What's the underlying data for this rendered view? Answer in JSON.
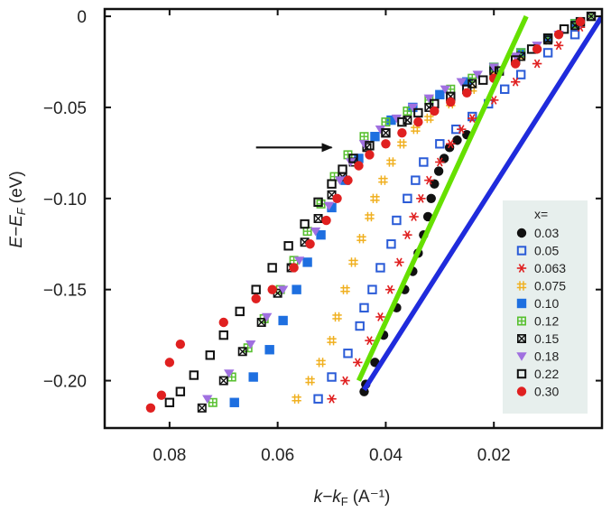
{
  "chart_data": {
    "type": "scatter",
    "xlabel": "k−kF (A⁻¹)",
    "xlabel_parts": {
      "main": "k−k",
      "sub": "F",
      "unit": "(A⁻¹)"
    },
    "ylabel": "E−EF (eV)",
    "ylabel_parts": {
      "main": "E−E",
      "sub": "F",
      "unit": "(eV)"
    },
    "xlim": [
      0.092,
      0.0
    ],
    "ylim": [
      -0.226,
      0.004
    ],
    "x_ticks": [
      0.08,
      0.06,
      0.04,
      0.02
    ],
    "x_tick_labels": [
      "0.08",
      "0.06",
      "0.04",
      "0.02"
    ],
    "y_ticks": [
      0,
      -0.05,
      -0.1,
      -0.15,
      -0.2
    ],
    "y_tick_labels": [
      "0",
      "−0.05",
      "−0.10",
      "−0.15",
      "−0.20"
    ],
    "legend_title": "x=",
    "legend_position": "right",
    "arrow": {
      "from": [
        0.064,
        -0.072
      ],
      "to": [
        0.05,
        -0.072
      ],
      "color": "#111111"
    },
    "lines": [
      {
        "name": "green-line",
        "color": "#66e000",
        "x": [
          0.045,
          0.014
        ],
        "y": [
          -0.2,
          0.0
        ]
      },
      {
        "name": "blue-line",
        "color": "#1f2bdc",
        "x": [
          0.044,
          0.0
        ],
        "y": [
          -0.205,
          0.0
        ]
      }
    ],
    "series": [
      {
        "name": "0.03",
        "marker": "circle",
        "color": "#111111",
        "x": [
          0.044,
          0.0437,
          0.042,
          0.0404,
          0.038,
          0.0365,
          0.035,
          0.034,
          0.033,
          0.0322,
          0.0316,
          0.031,
          0.0302,
          0.0292,
          0.0282,
          0.0268,
          0.025
        ],
        "y": [
          -0.206,
          -0.202,
          -0.19,
          -0.175,
          -0.16,
          -0.15,
          -0.14,
          -0.13,
          -0.12,
          -0.11,
          -0.1,
          -0.092,
          -0.085,
          -0.078,
          -0.072,
          -0.068,
          -0.065
        ]
      },
      {
        "name": "0.05",
        "marker": "square-open",
        "color": "#2a5bd7",
        "x": [
          0.0525,
          0.05,
          0.047,
          0.0448,
          0.044,
          0.0425,
          0.041,
          0.039,
          0.038,
          0.036,
          0.0345,
          0.033,
          0.03,
          0.027,
          0.024,
          0.021,
          0.018,
          0.015,
          0.01,
          0.005
        ],
        "y": [
          -0.21,
          -0.198,
          -0.185,
          -0.17,
          -0.16,
          -0.15,
          -0.138,
          -0.125,
          -0.112,
          -0.1,
          -0.09,
          -0.08,
          -0.07,
          -0.062,
          -0.055,
          -0.048,
          -0.04,
          -0.032,
          -0.02,
          -0.01
        ]
      },
      {
        "name": "0.063",
        "marker": "asterisk",
        "color": "#e02020",
        "x": [
          0.05,
          0.0475,
          0.0452,
          0.043,
          0.041,
          0.0392,
          0.0375,
          0.036,
          0.0348,
          0.0335,
          0.032,
          0.03,
          0.028,
          0.026,
          0.024,
          0.02,
          0.016,
          0.012,
          0.008,
          0.004
        ],
        "y": [
          -0.21,
          -0.2,
          -0.19,
          -0.178,
          -0.165,
          -0.15,
          -0.135,
          -0.12,
          -0.11,
          -0.1,
          -0.09,
          -0.08,
          -0.07,
          -0.062,
          -0.056,
          -0.046,
          -0.036,
          -0.026,
          -0.016,
          -0.006
        ]
      },
      {
        "name": "0.075",
        "marker": "hash",
        "color": "#f0b020",
        "x": [
          0.0565,
          0.054,
          0.052,
          0.05,
          0.049,
          0.0475,
          0.046,
          0.0445,
          0.043,
          0.042,
          0.0405,
          0.039,
          0.037,
          0.0345,
          0.032,
          0.028,
          0.024,
          0.02,
          0.015,
          0.01,
          0.005
        ],
        "y": [
          -0.21,
          -0.2,
          -0.19,
          -0.178,
          -0.165,
          -0.15,
          -0.135,
          -0.122,
          -0.11,
          -0.1,
          -0.09,
          -0.08,
          -0.07,
          -0.062,
          -0.056,
          -0.048,
          -0.04,
          -0.032,
          -0.022,
          -0.013,
          -0.005
        ]
      },
      {
        "name": "0.10",
        "marker": "square",
        "color": "#1e6fe0",
        "x": [
          0.068,
          0.0645,
          0.0615,
          0.059,
          0.0565,
          0.0545,
          0.052,
          0.05,
          0.0475,
          0.045,
          0.042,
          0.039,
          0.035,
          0.03,
          0.025,
          0.02,
          0.015,
          0.01,
          0.005
        ],
        "y": [
          -0.212,
          -0.198,
          -0.183,
          -0.167,
          -0.15,
          -0.135,
          -0.12,
          -0.105,
          -0.09,
          -0.078,
          -0.066,
          -0.057,
          -0.05,
          -0.043,
          -0.036,
          -0.028,
          -0.02,
          -0.012,
          -0.004
        ]
      },
      {
        "name": "0.12",
        "marker": "square-grid",
        "color": "#58c030",
        "x": [
          0.072,
          0.0685,
          0.0655,
          0.0625,
          0.0595,
          0.057,
          0.0545,
          0.052,
          0.0495,
          0.047,
          0.044,
          0.04,
          0.036,
          0.032,
          0.028,
          0.024,
          0.02,
          0.015,
          0.01,
          0.005,
          0.002
        ],
        "y": [
          -0.212,
          -0.198,
          -0.182,
          -0.166,
          -0.15,
          -0.134,
          -0.118,
          -0.103,
          -0.088,
          -0.076,
          -0.066,
          -0.058,
          -0.052,
          -0.046,
          -0.04,
          -0.034,
          -0.028,
          -0.02,
          -0.012,
          -0.004,
          0.0
        ]
      },
      {
        "name": "0.15",
        "marker": "square-x",
        "color": "#111111",
        "x": [
          0.074,
          0.07,
          0.0665,
          0.063,
          0.06,
          0.0575,
          0.055,
          0.0525,
          0.05,
          0.048,
          0.046,
          0.0435,
          0.04,
          0.036,
          0.032,
          0.028,
          0.024,
          0.02,
          0.015,
          0.01,
          0.005,
          0.002
        ],
        "y": [
          -0.215,
          -0.2,
          -0.184,
          -0.168,
          -0.152,
          -0.138,
          -0.124,
          -0.111,
          -0.098,
          -0.088,
          -0.08,
          -0.072,
          -0.064,
          -0.057,
          -0.05,
          -0.044,
          -0.037,
          -0.03,
          -0.022,
          -0.013,
          -0.005,
          0.0
        ]
      },
      {
        "name": "0.18",
        "marker": "triangle-down",
        "color": "#a070e0",
        "x": [
          0.073,
          0.069,
          0.065,
          0.062,
          0.059,
          0.056,
          0.053,
          0.0505,
          0.0485,
          0.0465,
          0.044,
          0.041,
          0.038,
          0.035,
          0.032,
          0.029,
          0.026,
          0.023,
          0.02,
          0.016,
          0.012,
          0.008,
          0.004
        ],
        "y": [
          -0.21,
          -0.196,
          -0.18,
          -0.165,
          -0.15,
          -0.134,
          -0.118,
          -0.104,
          -0.09,
          -0.08,
          -0.07,
          -0.062,
          -0.056,
          -0.05,
          -0.045,
          -0.04,
          -0.036,
          -0.032,
          -0.028,
          -0.022,
          -0.016,
          -0.01,
          -0.004
        ]
      },
      {
        "name": "0.22",
        "marker": "square-open",
        "color": "#111111",
        "x": [
          0.08,
          0.078,
          0.0755,
          0.0725,
          0.07,
          0.067,
          0.064,
          0.061,
          0.058,
          0.055,
          0.0525,
          0.05,
          0.048,
          0.046,
          0.043,
          0.04,
          0.037,
          0.034,
          0.031,
          0.028,
          0.025,
          0.022,
          0.019,
          0.016,
          0.013,
          0.01,
          0.007,
          0.004,
          0.002
        ],
        "y": [
          -0.212,
          -0.206,
          -0.197,
          -0.186,
          -0.175,
          -0.162,
          -0.15,
          -0.138,
          -0.126,
          -0.114,
          -0.102,
          -0.092,
          -0.084,
          -0.078,
          -0.071,
          -0.064,
          -0.058,
          -0.053,
          -0.048,
          -0.044,
          -0.04,
          -0.035,
          -0.03,
          -0.024,
          -0.018,
          -0.012,
          -0.007,
          -0.003,
          0.0
        ]
      },
      {
        "name": "0.30",
        "marker": "circle",
        "color": "#e02020",
        "x": [
          0.0835,
          0.0815,
          0.08,
          0.078,
          0.07,
          0.064,
          0.061,
          0.057,
          0.054,
          0.051,
          0.049,
          0.047,
          0.045,
          0.043,
          0.04,
          0.037,
          0.034,
          0.031,
          0.028,
          0.025,
          0.02,
          0.016,
          0.012,
          0.008,
          0.004
        ],
        "y": [
          -0.215,
          -0.208,
          -0.19,
          -0.18,
          -0.168,
          -0.155,
          -0.15,
          -0.138,
          -0.125,
          -0.112,
          -0.1,
          -0.09,
          -0.082,
          -0.076,
          -0.07,
          -0.064,
          -0.058,
          -0.052,
          -0.047,
          -0.042,
          -0.034,
          -0.026,
          -0.018,
          -0.01,
          -0.003
        ]
      }
    ]
  }
}
